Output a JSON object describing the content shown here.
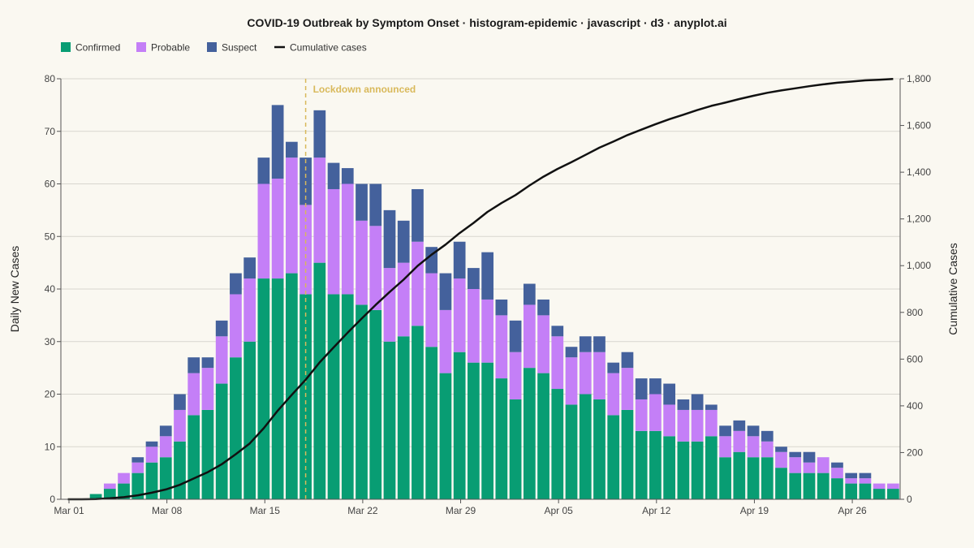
{
  "chart_data": {
    "type": "bar",
    "title": "COVID-19 Outbreak by Symptom Onset · histogram-epidemic · javascript · d3 · anyplot.ai",
    "ylabel": "Daily New Cases",
    "y2label": "Cumulative Cases",
    "ylim": [
      0,
      80
    ],
    "y2lim": [
      0,
      1800
    ],
    "yticks": [
      "0",
      "10",
      "20",
      "30",
      "40",
      "50",
      "60",
      "70",
      "80"
    ],
    "y2ticks": [
      "0",
      "200",
      "400",
      "600",
      "800",
      "1,000",
      "1,200",
      "1,400",
      "1,600",
      "1,800"
    ],
    "xticks": [
      {
        "day": 0,
        "label": "Mar 01"
      },
      {
        "day": 7,
        "label": "Mar 08"
      },
      {
        "day": 14,
        "label": "Mar 15"
      },
      {
        "day": 21,
        "label": "Mar 22"
      },
      {
        "day": 28,
        "label": "Mar 29"
      },
      {
        "day": 35,
        "label": "Apr 05"
      },
      {
        "day": 42,
        "label": "Apr 12"
      },
      {
        "day": 49,
        "label": "Apr 19"
      },
      {
        "day": 56,
        "label": "Apr 26"
      }
    ],
    "legend_position": "top-left",
    "colors": {
      "confirmed": "#089d73",
      "probable": "#c47ff7",
      "suspect": "#44619c",
      "cumulative": "#111111",
      "annotation": "#d9b95b"
    },
    "legend": [
      "Confirmed",
      "Probable",
      "Suspect",
      "Cumulative cases"
    ],
    "annotation": {
      "label": "Lockdown announced",
      "day": 17.5
    },
    "series": [
      {
        "name": "Confirmed",
        "values": [
          0,
          0,
          1,
          2,
          3,
          5,
          7,
          8,
          11,
          16,
          17,
          22,
          27,
          30,
          42,
          42,
          43,
          39,
          45,
          39,
          39,
          37,
          36,
          30,
          31,
          33,
          29,
          24,
          28,
          26,
          26,
          23,
          19,
          25,
          24,
          21,
          18,
          20,
          19,
          16,
          17,
          13,
          13,
          12,
          11,
          11,
          12,
          8,
          9,
          8,
          8,
          6,
          5,
          5,
          5,
          4,
          3,
          3,
          2,
          2
        ]
      },
      {
        "name": "Probable",
        "values": [
          0,
          0,
          0,
          1,
          2,
          2,
          3,
          4,
          6,
          8,
          8,
          9,
          12,
          12,
          18,
          19,
          22,
          17,
          20,
          20,
          21,
          16,
          16,
          14,
          14,
          16,
          14,
          12,
          14,
          14,
          12,
          12,
          9,
          12,
          11,
          10,
          9,
          8,
          9,
          8,
          8,
          6,
          7,
          6,
          6,
          6,
          5,
          4,
          4,
          4,
          3,
          3,
          3,
          2,
          3,
          2,
          1,
          1,
          1,
          1
        ]
      },
      {
        "name": "Suspect",
        "values": [
          0,
          0,
          0,
          0,
          0,
          1,
          1,
          2,
          3,
          3,
          2,
          3,
          4,
          4,
          5,
          14,
          3,
          9,
          9,
          5,
          3,
          7,
          8,
          11,
          8,
          10,
          5,
          7,
          7,
          4,
          9,
          3,
          6,
          4,
          3,
          2,
          2,
          3,
          3,
          2,
          3,
          4,
          3,
          4,
          2,
          3,
          1,
          2,
          2,
          2,
          2,
          1,
          1,
          2,
          0,
          1,
          1,
          1,
          0,
          0
        ]
      },
      {
        "name": "Cumulative cases",
        "values": [
          0,
          0,
          1,
          4,
          9,
          17,
          28,
          42,
          62,
          89,
          116,
          150,
          193,
          239,
          304,
          379,
          447,
          512,
          586,
          650,
          713,
          773,
          832,
          887,
          940,
          999,
          1047,
          1090,
          1139,
          1183,
          1230,
          1268,
          1302,
          1343,
          1381,
          1414,
          1443,
          1474,
          1505,
          1531,
          1559,
          1582,
          1605,
          1627,
          1646,
          1666,
          1684,
          1698,
          1713,
          1727,
          1740,
          1750,
          1759,
          1768,
          1776,
          1783,
          1788,
          1793,
          1796,
          1799
        ]
      }
    ]
  }
}
